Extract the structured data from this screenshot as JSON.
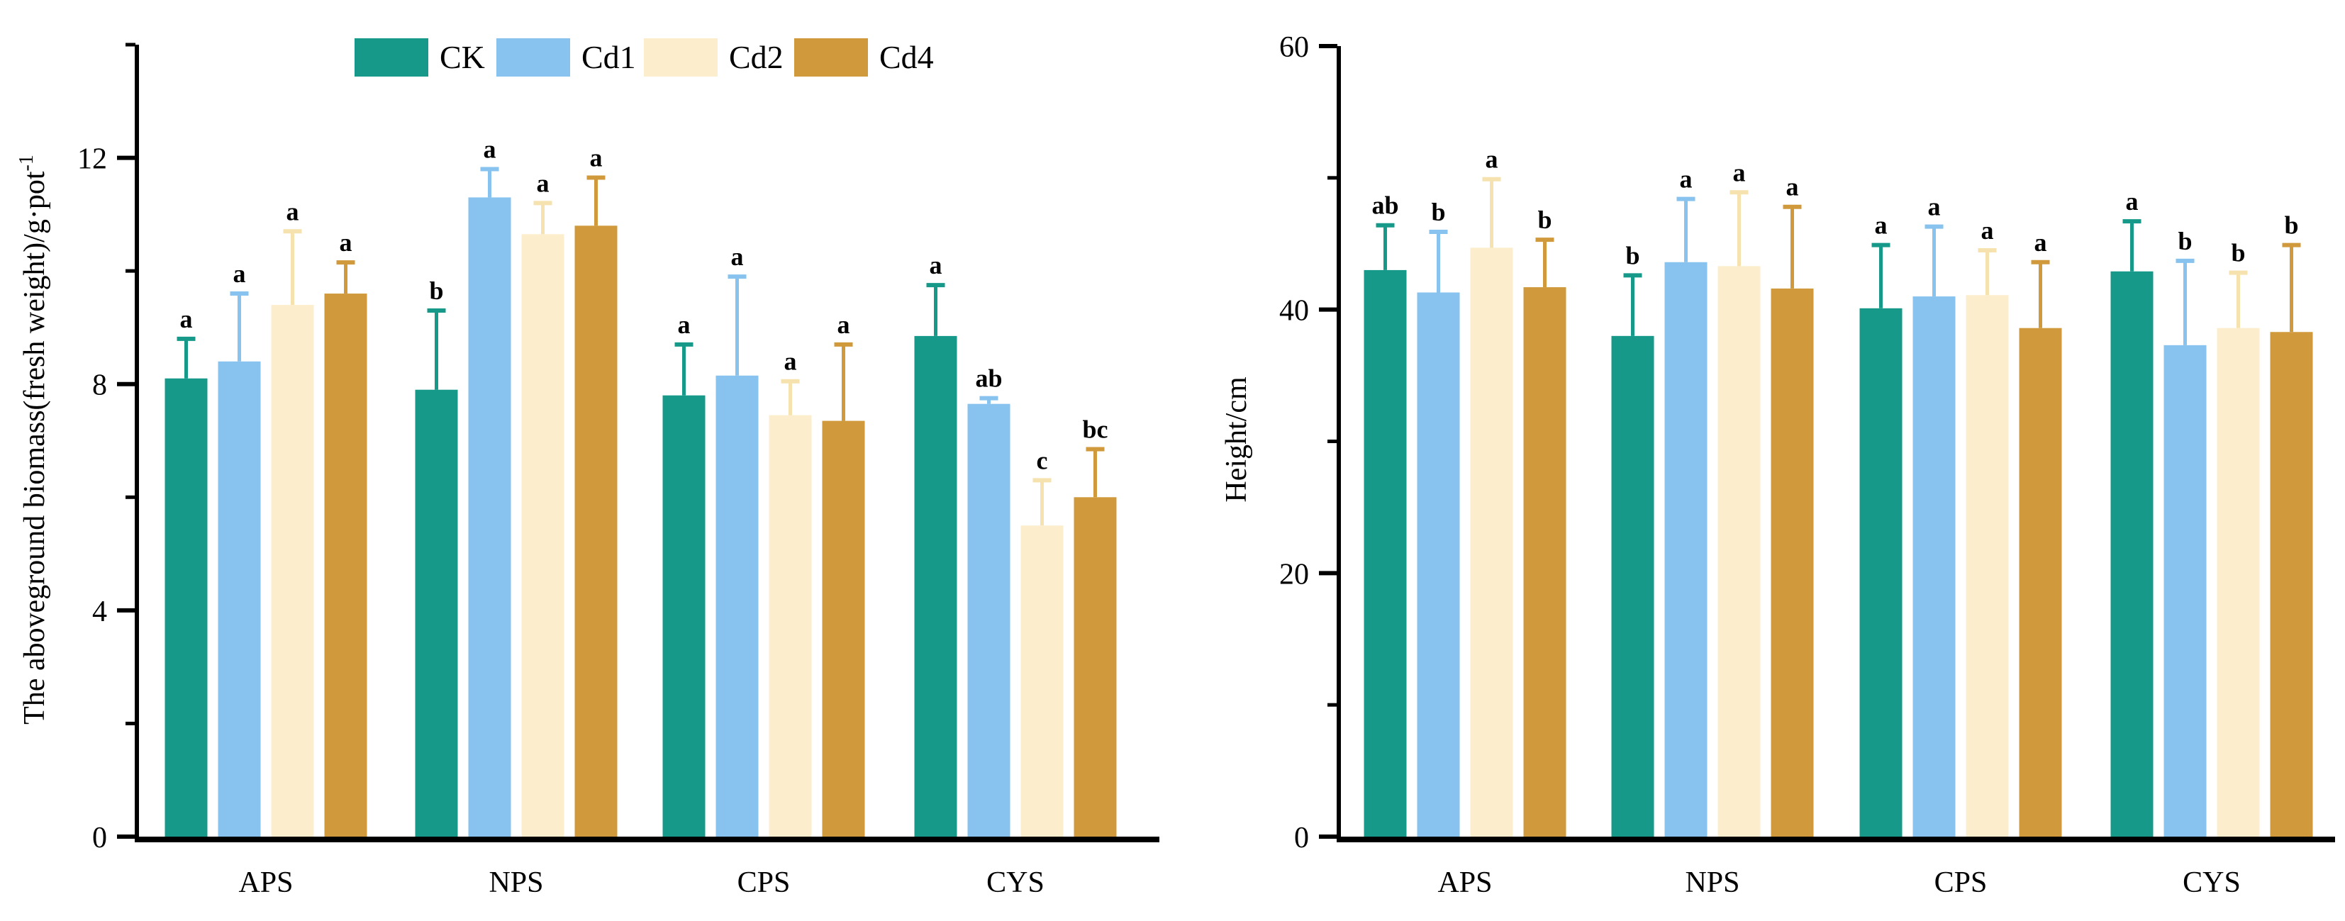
{
  "figure": {
    "background": "#ffffff",
    "axis_color": "#000000",
    "letter_color": "#000000",
    "series_colors": {
      "CK": "#17998A",
      "Cd1": "#87C3EE",
      "Cd2": "#FCEECD",
      "Cd4": "#D09A3C"
    },
    "error_bar_colors": {
      "CK": "#17998A",
      "Cd1": "#87C3EE",
      "Cd2": "#F5E2AE",
      "Cd4": "#D09A3C"
    }
  },
  "legend": {
    "position": "top-left-inside",
    "items": [
      {
        "label": "CK",
        "color": "#17998A"
      },
      {
        "label": "Cd1",
        "color": "#87C3EE"
      },
      {
        "label": "Cd2",
        "color": "#FCEECD"
      },
      {
        "label": "Cd4",
        "color": "#D09A3C"
      }
    ]
  },
  "chart_data": [
    {
      "id": "biomass",
      "type": "bar",
      "title": "",
      "xlabel": "",
      "ylabel": {
        "text": "The aboveground biomass(fresh weight)/g·pot",
        "superscript": "-1"
      },
      "categories": [
        "APS",
        "NPS",
        "CPS",
        "CYS"
      ],
      "series": [
        {
          "name": "CK",
          "values": [
            8.1,
            7.9,
            7.8,
            8.85
          ],
          "errors": [
            0.7,
            1.4,
            0.9,
            0.9
          ],
          "letters": [
            "a",
            "b",
            "a",
            "a"
          ]
        },
        {
          "name": "Cd1",
          "values": [
            8.4,
            11.3,
            8.15,
            7.65
          ],
          "errors": [
            1.2,
            0.5,
            1.75,
            0.1
          ],
          "letters": [
            "a",
            "a",
            "a",
            "ab"
          ]
        },
        {
          "name": "Cd2",
          "values": [
            9.4,
            10.65,
            7.45,
            5.5
          ],
          "errors": [
            1.3,
            0.55,
            0.6,
            0.8
          ],
          "letters": [
            "a",
            "a",
            "a",
            "c"
          ]
        },
        {
          "name": "Cd4",
          "values": [
            9.6,
            10.8,
            7.35,
            6.0
          ],
          "errors": [
            0.55,
            0.85,
            1.35,
            0.85
          ],
          "letters": [
            "a",
            "a",
            "a",
            "bc"
          ]
        }
      ],
      "ylim": [
        0,
        14
      ],
      "yticks_major": [
        0,
        4,
        8,
        12
      ],
      "yticks_minor": [
        2,
        6,
        10,
        14
      ],
      "grid": false
    },
    {
      "id": "height",
      "type": "bar",
      "title": "",
      "xlabel": "",
      "ylabel": {
        "text": "Height/cm",
        "superscript": ""
      },
      "categories": [
        "APS",
        "NPS",
        "CPS",
        "CYS"
      ],
      "series": [
        {
          "name": "CK",
          "values": [
            43.0,
            38.0,
            40.1,
            42.9
          ],
          "errors": [
            3.4,
            4.6,
            4.8,
            3.8
          ],
          "letters": [
            "ab",
            "b",
            "a",
            "a"
          ]
        },
        {
          "name": "Cd1",
          "values": [
            41.3,
            43.6,
            41.0,
            37.3
          ],
          "errors": [
            4.6,
            4.8,
            5.3,
            6.4
          ],
          "letters": [
            "b",
            "a",
            "a",
            "b"
          ]
        },
        {
          "name": "Cd2",
          "values": [
            44.7,
            43.3,
            41.1,
            38.6
          ],
          "errors": [
            5.2,
            5.6,
            3.4,
            4.2
          ],
          "letters": [
            "a",
            "a",
            "a",
            "b"
          ]
        },
        {
          "name": "Cd4",
          "values": [
            41.7,
            41.6,
            38.6,
            38.3
          ],
          "errors": [
            3.6,
            6.2,
            5.0,
            6.6
          ],
          "letters": [
            "b",
            "a",
            "a",
            "b"
          ]
        }
      ],
      "ylim": [
        0,
        60
      ],
      "yticks_major": [
        0,
        20,
        40,
        60
      ],
      "yticks_minor": [
        10,
        30,
        50
      ],
      "grid": false
    }
  ]
}
